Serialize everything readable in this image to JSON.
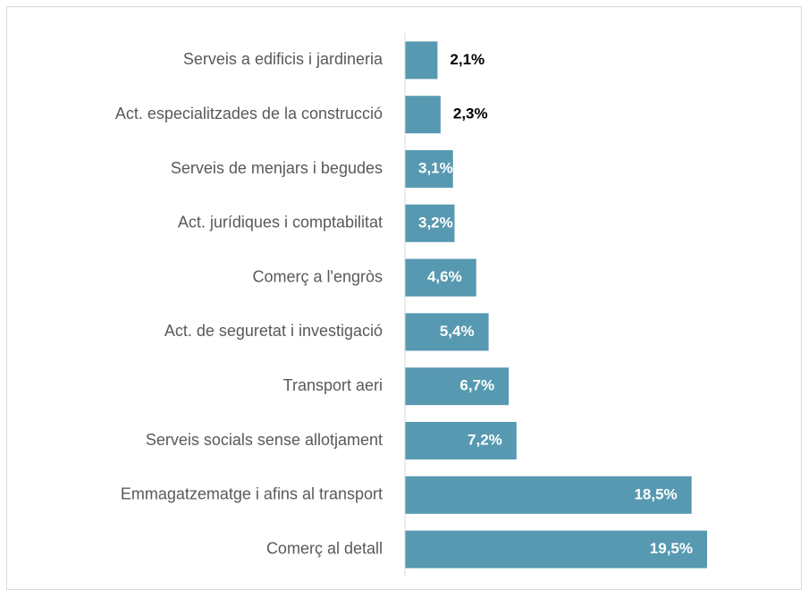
{
  "chart_data": {
    "type": "barh",
    "categories": [
      "Serveis a edificis i jardineria",
      "Act. especialitzades de la construcció",
      "Serveis de menjars i begudes",
      "Act. jurídiques i comptabilitat",
      "Comerç a l'engròs",
      "Act. de seguretat i investigació",
      "Transport aeri",
      "Serveis socials sense allotjament",
      "Emmagatzematge i afins al transport",
      "Comerç al detall"
    ],
    "values": [
      2.1,
      2.3,
      3.1,
      3.2,
      4.6,
      5.4,
      6.7,
      7.2,
      18.5,
      19.5
    ],
    "value_labels": [
      "2,1%",
      "2,3%",
      "3,1%",
      "3,2%",
      "4,6%",
      "5,4%",
      "6,7%",
      "7,2%",
      "18,5%",
      "19,5%"
    ],
    "color": "#5799b1"
  }
}
